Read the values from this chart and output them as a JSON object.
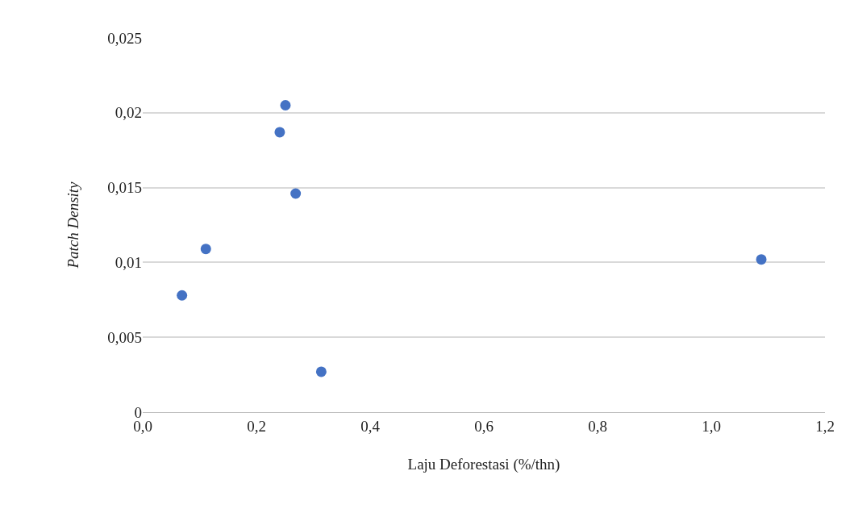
{
  "chart_data": {
    "type": "scatter",
    "xlabel": "Laju Deforestasi (%/thn)",
    "ylabel": "Patch Density",
    "x": [
      0.069,
      0.111,
      0.241,
      0.251,
      0.269,
      0.314,
      1.088
    ],
    "series": [
      {
        "color": "#4472c4",
        "values": [
          0.0078,
          0.0109,
          0.0187,
          0.0205,
          0.0146,
          0.0027,
          0.0102
        ]
      }
    ],
    "xlim": [
      0,
      1.2
    ],
    "xticks": [
      {
        "value": 0,
        "label": "0,0"
      },
      {
        "value": 0.2,
        "label": "0,2"
      },
      {
        "value": 0.4,
        "label": "0,4"
      },
      {
        "value": 0.6,
        "label": "0,6"
      },
      {
        "value": 0.8,
        "label": "0,8"
      },
      {
        "value": 1.0,
        "label": "1,0"
      },
      {
        "value": 1.2,
        "label": "1,2"
      }
    ],
    "ylim": [
      0,
      0.025
    ],
    "yticks": [
      0,
      {
        "value": 0.005,
        "label": "0,005"
      },
      {
        "value": 0.01,
        "label": "0,01"
      },
      {
        "value": 0.015,
        "label": "0,015"
      },
      {
        "value": 0.02,
        "label": "0,02"
      },
      {
        "value": 0.025,
        "label": "0,025"
      }
    ],
    "grid": "y",
    "marker": "circle"
  }
}
